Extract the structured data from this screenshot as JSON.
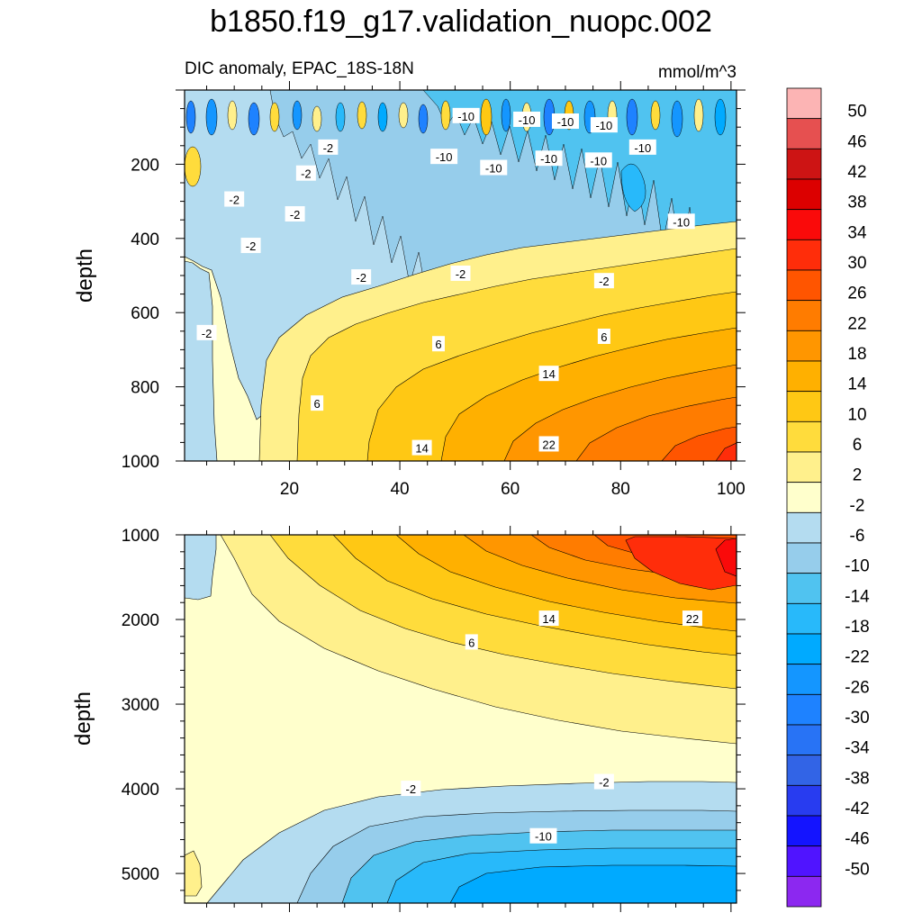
{
  "chart_data": {
    "type": "heatmap",
    "title": "b1850.f19_g17.validation_nuopc.002",
    "subtitle_left": "DIC anomaly, EPAC_18S-18N",
    "units": "mmol/m^3",
    "colorbar": {
      "levels": [
        50,
        46,
        42,
        38,
        34,
        30,
        26,
        22,
        18,
        14,
        10,
        6,
        2,
        -2,
        -6,
        -10,
        -14,
        -18,
        -22,
        -26,
        -30,
        -34,
        -38,
        -42,
        -46,
        -50
      ],
      "labels": [
        "50",
        "46",
        "42",
        "38",
        "34",
        "30",
        "26",
        "22",
        "18",
        "14",
        "10",
        "6",
        "2",
        "-2",
        "-6",
        "-10",
        "-14",
        "-18",
        "-22",
        "-26",
        "-30",
        "-34",
        "-38",
        "-42",
        "-46",
        "-50"
      ],
      "colors": [
        "#fcb4b4",
        "#e65050",
        "#cd1414",
        "#dc0000",
        "#fa0a0a",
        "#ff2d0a",
        "#ff5500",
        "#ff7c00",
        "#ff9600",
        "#ffb000",
        "#ffc814",
        "#ffdc3c",
        "#fff08c",
        "#ffffcc",
        "#b4dcf0",
        "#96cdeb",
        "#50c3f0",
        "#28b9fa",
        "#00aaff",
        "#1496ff",
        "#1e82ff",
        "#2873f5",
        "#3264e6",
        "#283cf0",
        "#1414ff",
        "#5014ff",
        "#8c28f0"
      ]
    },
    "panels": [
      {
        "name": "upper-panel",
        "ylabel": "depth",
        "xlabel": "",
        "xlim": [
          1,
          101
        ],
        "ylim": [
          1000,
          0
        ],
        "xticks": [
          20,
          40,
          60,
          80,
          100
        ],
        "xtick_labels": [
          "20",
          "40",
          "60",
          "80",
          "100"
        ],
        "yticks": [
          200,
          400,
          600,
          800,
          1000
        ],
        "ytick_labels": [
          "200",
          "400",
          "600",
          "800",
          "1000"
        ],
        "contour_labels": [
          {
            "text": "-10",
            "x": 52,
            "y": 70
          },
          {
            "text": "-10",
            "x": 63,
            "y": 80
          },
          {
            "text": "-10",
            "x": 70,
            "y": 85
          },
          {
            "text": "-10",
            "x": 77,
            "y": 95
          },
          {
            "text": "-10",
            "x": 48,
            "y": 180
          },
          {
            "text": "-10",
            "x": 57,
            "y": 210
          },
          {
            "text": "-10",
            "x": 67,
            "y": 185
          },
          {
            "text": "-10",
            "x": 76,
            "y": 190
          },
          {
            "text": "-10",
            "x": 84,
            "y": 155
          },
          {
            "text": "-10",
            "x": 91,
            "y": 355
          },
          {
            "text": "-2",
            "x": 27,
            "y": 155
          },
          {
            "text": "-2",
            "x": 23,
            "y": 225
          },
          {
            "text": "-2",
            "x": 10,
            "y": 295
          },
          {
            "text": "-2",
            "x": 21,
            "y": 335
          },
          {
            "text": "-2",
            "x": 13,
            "y": 420
          },
          {
            "text": "-2",
            "x": 33,
            "y": 505
          },
          {
            "text": "-2",
            "x": 51,
            "y": 495
          },
          {
            "text": "-2",
            "x": 77,
            "y": 515
          },
          {
            "text": "-2",
            "x": 5,
            "y": 655
          },
          {
            "text": "6",
            "x": 47,
            "y": 685
          },
          {
            "text": "6",
            "x": 77,
            "y": 665
          },
          {
            "text": "6",
            "x": 25,
            "y": 845
          },
          {
            "text": "14",
            "x": 67,
            "y": 765
          },
          {
            "text": "14",
            "x": 44,
            "y": 965
          },
          {
            "text": "22",
            "x": 67,
            "y": 955
          }
        ]
      },
      {
        "name": "lower-panel",
        "ylabel": "depth",
        "xlabel": "",
        "xlim": [
          1,
          101
        ],
        "ylim": [
          5350,
          1000
        ],
        "yticks": [
          1000,
          2000,
          3000,
          4000,
          5000
        ],
        "ytick_labels": [
          "1000",
          "2000",
          "3000",
          "4000",
          "5000"
        ],
        "contour_labels": [
          {
            "text": "14",
            "x": 67,
            "y": 1990
          },
          {
            "text": "22",
            "x": 93,
            "y": 1990
          },
          {
            "text": "6",
            "x": 53,
            "y": 2270
          },
          {
            "text": "-2",
            "x": 42,
            "y": 4000
          },
          {
            "text": "-2",
            "x": 77,
            "y": 3920
          },
          {
            "text": "-10",
            "x": 66,
            "y": 4560
          }
        ]
      }
    ]
  }
}
